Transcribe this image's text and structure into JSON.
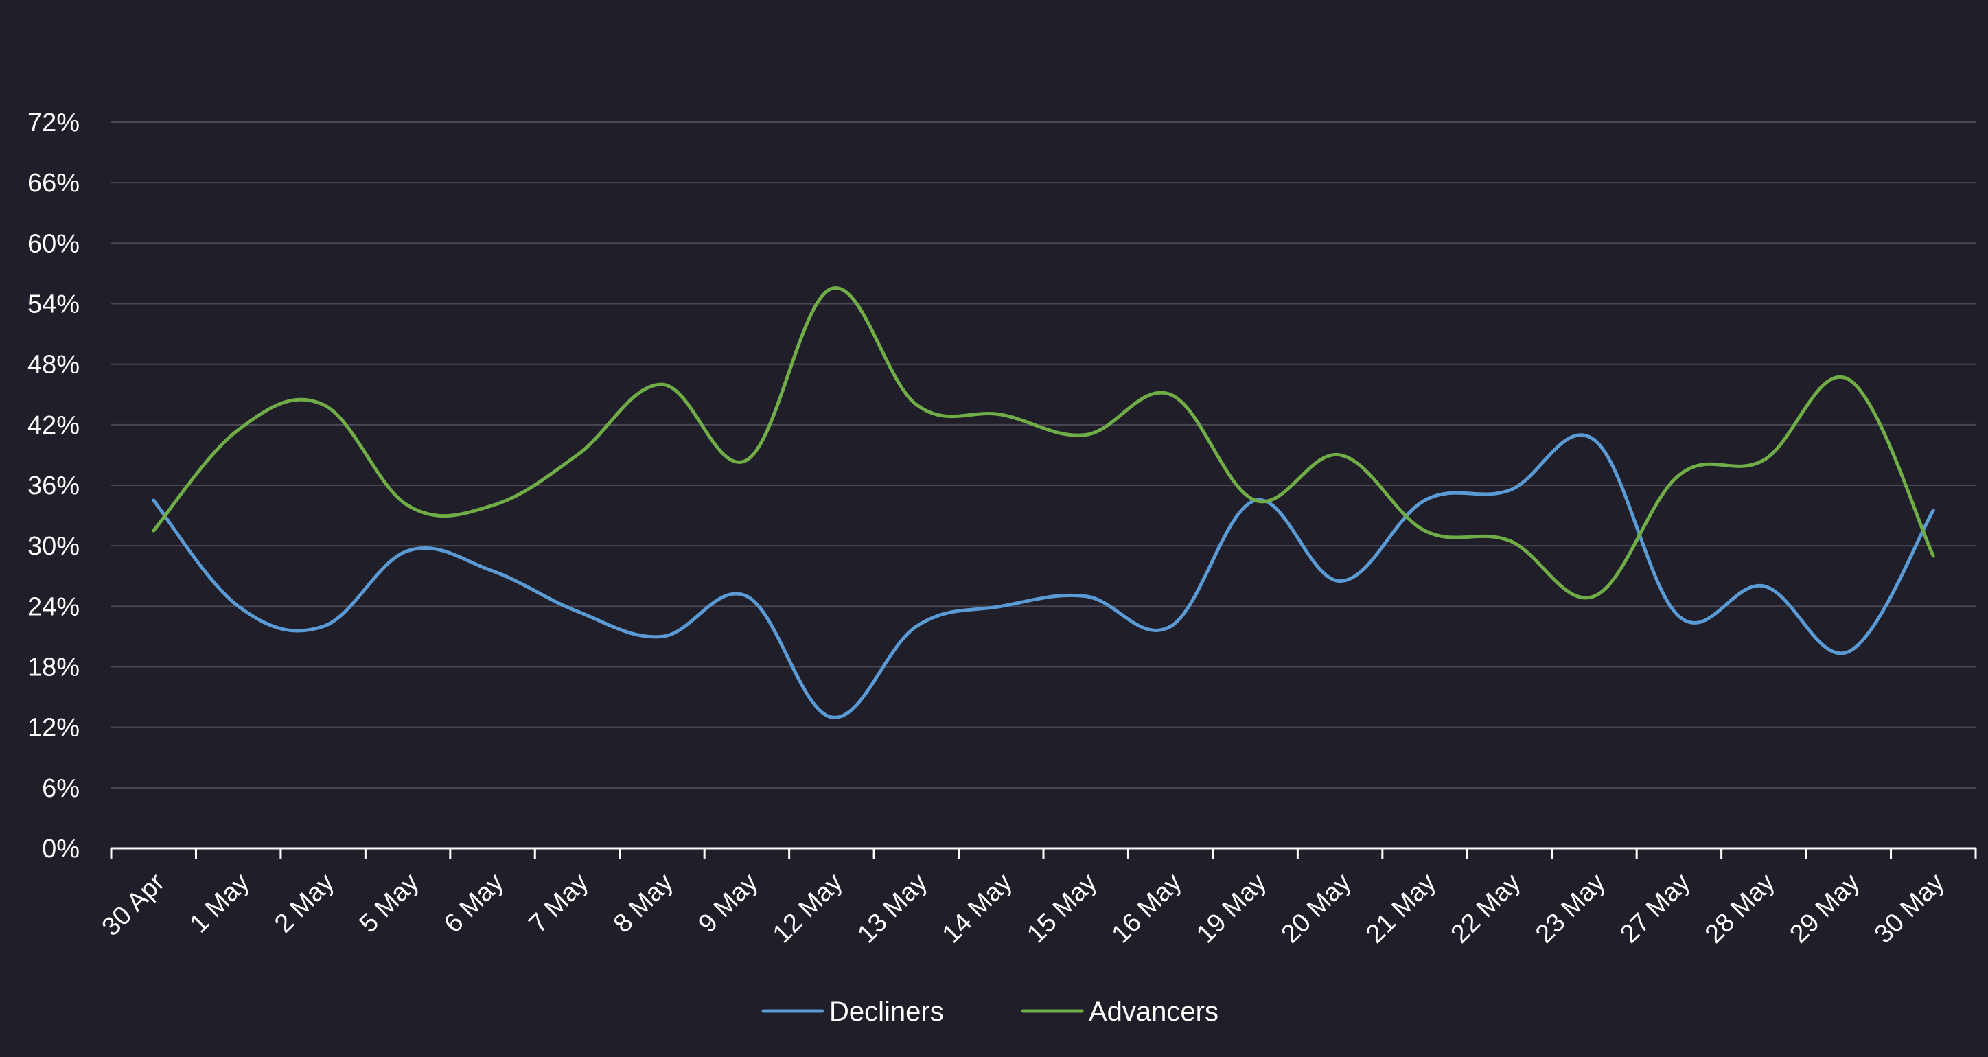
{
  "chart_data": {
    "type": "line",
    "categories": [
      "30 Apr",
      "1 May",
      "2 May",
      "5 May",
      "6 May",
      "7 May",
      "8 May",
      "9 May",
      "12 May",
      "13 May",
      "14 May",
      "15 May",
      "16 May",
      "19 May",
      "20 May",
      "21 May",
      "22 May",
      "23 May",
      "27 May",
      "28 May",
      "29 May",
      "30 May"
    ],
    "series": [
      {
        "name": "Decliners",
        "color": "#5b9bd5",
        "values": [
          34.5,
          24,
          22,
          29.5,
          27.5,
          23.5,
          21,
          25,
          13,
          22,
          24,
          25,
          22,
          34.5,
          26.5,
          34.5,
          35.5,
          40.5,
          23,
          26,
          19.5,
          33.5
        ]
      },
      {
        "name": "Advancers",
        "color": "#70ad47",
        "values": [
          31.5,
          41.5,
          44,
          34,
          34,
          39,
          46,
          38.5,
          55.5,
          44,
          43,
          41,
          45,
          34.5,
          39,
          31.5,
          30.5,
          25,
          37,
          38.5,
          46.5,
          29
        ]
      }
    ],
    "yticks": [
      "0%",
      "6%",
      "12%",
      "18%",
      "24%",
      "30%",
      "36%",
      "42%",
      "48%",
      "54%",
      "60%",
      "66%",
      "72%"
    ],
    "ylim": [
      0,
      72
    ],
    "ystep": 6,
    "grid": true,
    "legend": "bottom-center",
    "title": "",
    "xlabel": "",
    "ylabel": ""
  }
}
